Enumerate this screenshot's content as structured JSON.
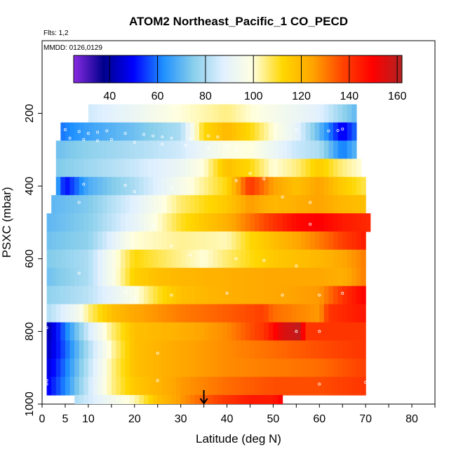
{
  "chart_data": {
    "type": "heatmap",
    "title": "ATOM2 Northeast_Pacific_1 CO_PECD",
    "annotations": {
      "flights": "Flts: 1,2",
      "dates": "MMDD: 0126,0129"
    },
    "xlabel": "Latitude (deg N)",
    "ylabel": "PSXC (mbar)",
    "xlim": [
      0,
      85
    ],
    "ylim": [
      1000,
      0
    ],
    "x_ticks": [
      0,
      5,
      10,
      20,
      30,
      40,
      50,
      60,
      70,
      80
    ],
    "y_ticks": [
      200,
      400,
      600,
      800,
      1000
    ],
    "colorbar": {
      "range": [
        25,
        162
      ],
      "ticks": [
        40,
        60,
        80,
        100,
        120,
        140,
        160
      ],
      "colors": [
        "#8a2be2",
        "#00008b",
        "#0000ff",
        "#1e90ff",
        "#87ceeb",
        "#e0f0ff",
        "#ffffe0",
        "#ffd700",
        "#ffa500",
        "#ff4500",
        "#ff0000",
        "#b22222"
      ]
    },
    "marker": {
      "latitude": 35
    },
    "bands": [
      {
        "p": [
          175,
          225
        ],
        "lat": [
          10,
          68
        ],
        "values": [
          [
            10,
            85
          ],
          [
            20,
            92
          ],
          [
            30,
            100
          ],
          [
            40,
            105
          ],
          [
            50,
            96
          ],
          [
            60,
            88
          ],
          [
            68,
            70
          ]
        ]
      },
      {
        "p": [
          225,
          275
        ],
        "lat": [
          4,
          68
        ],
        "values": [
          [
            4,
            60
          ],
          [
            10,
            66
          ],
          [
            20,
            72
          ],
          [
            30,
            80
          ],
          [
            35,
            112
          ],
          [
            40,
            120
          ],
          [
            45,
            112
          ],
          [
            50,
            100
          ],
          [
            55,
            90
          ],
          [
            60,
            70
          ],
          [
            65,
            48
          ],
          [
            68,
            60
          ]
        ]
      },
      {
        "p": [
          275,
          325
        ],
        "lat": [
          3,
          68
        ],
        "values": [
          [
            3,
            72
          ],
          [
            10,
            76
          ],
          [
            20,
            80
          ],
          [
            30,
            85
          ],
          [
            35,
            92
          ],
          [
            40,
            98
          ],
          [
            45,
            100
          ],
          [
            50,
            92
          ],
          [
            55,
            84
          ],
          [
            60,
            80
          ],
          [
            65,
            60
          ],
          [
            68,
            70
          ]
        ]
      },
      {
        "p": [
          325,
          375
        ],
        "lat": [
          3,
          69
        ],
        "values": [
          [
            3,
            74
          ],
          [
            10,
            78
          ],
          [
            20,
            84
          ],
          [
            30,
            92
          ],
          [
            35,
            100
          ],
          [
            40,
            118
          ],
          [
            45,
            112
          ],
          [
            50,
            100
          ],
          [
            55,
            105
          ],
          [
            60,
            115
          ],
          [
            65,
            105
          ],
          [
            69,
            100
          ]
        ]
      },
      {
        "p": [
          375,
          425
        ],
        "lat": [
          3,
          70
        ],
        "values": [
          [
            3,
            68
          ],
          [
            5,
            50
          ],
          [
            10,
            68
          ],
          [
            20,
            80
          ],
          [
            30,
            96
          ],
          [
            40,
            112
          ],
          [
            45,
            140
          ],
          [
            50,
            125
          ],
          [
            55,
            118
          ],
          [
            60,
            125
          ],
          [
            65,
            115
          ],
          [
            70,
            108
          ]
        ]
      },
      {
        "p": [
          425,
          475
        ],
        "lat": [
          2,
          70
        ],
        "values": [
          [
            2,
            70
          ],
          [
            10,
            74
          ],
          [
            20,
            88
          ],
          [
            30,
            106
          ],
          [
            40,
            116
          ],
          [
            45,
            126
          ],
          [
            50,
            120
          ],
          [
            55,
            122
          ],
          [
            60,
            125
          ],
          [
            65,
            120
          ],
          [
            70,
            118
          ]
        ]
      },
      {
        "p": [
          475,
          525
        ],
        "lat": [
          1,
          71
        ],
        "values": [
          [
            1,
            70
          ],
          [
            10,
            75
          ],
          [
            20,
            90
          ],
          [
            30,
            110
          ],
          [
            40,
            122
          ],
          [
            50,
            140
          ],
          [
            55,
            148
          ],
          [
            60,
            150
          ],
          [
            65,
            145
          ],
          [
            71,
            142
          ]
        ]
      },
      {
        "p": [
          525,
          575
        ],
        "lat": [
          1,
          70
        ],
        "values": [
          [
            1,
            72
          ],
          [
            10,
            76
          ],
          [
            15,
            88
          ],
          [
            20,
            100
          ],
          [
            30,
            104
          ],
          [
            40,
            102
          ],
          [
            45,
            112
          ],
          [
            50,
            118
          ],
          [
            55,
            124
          ],
          [
            60,
            130
          ],
          [
            65,
            138
          ],
          [
            70,
            145
          ]
        ]
      },
      {
        "p": [
          575,
          625
        ],
        "lat": [
          1,
          70
        ],
        "values": [
          [
            1,
            74
          ],
          [
            10,
            80
          ],
          [
            15,
            96
          ],
          [
            20,
            112
          ],
          [
            25,
            108
          ],
          [
            30,
            104
          ],
          [
            35,
            100
          ],
          [
            40,
            106
          ],
          [
            50,
            116
          ],
          [
            60,
            120
          ],
          [
            65,
            124
          ],
          [
            70,
            130
          ]
        ]
      },
      {
        "p": [
          625,
          675
        ],
        "lat": [
          1,
          70
        ],
        "values": [
          [
            1,
            72
          ],
          [
            10,
            80
          ],
          [
            15,
            96
          ],
          [
            20,
            114
          ],
          [
            25,
            118
          ],
          [
            30,
            120
          ],
          [
            40,
            122
          ],
          [
            50,
            124
          ],
          [
            60,
            124
          ],
          [
            65,
            122
          ],
          [
            70,
            130
          ]
        ]
      },
      {
        "p": [
          675,
          725
        ],
        "lat": [
          1,
          70
        ],
        "values": [
          [
            1,
            76
          ],
          [
            10,
            82
          ],
          [
            15,
            90
          ],
          [
            20,
            98
          ],
          [
            25,
            110
          ],
          [
            30,
            118
          ],
          [
            40,
            122
          ],
          [
            50,
            124
          ],
          [
            60,
            126
          ],
          [
            65,
            140
          ],
          [
            70,
            150
          ]
        ]
      },
      {
        "p": [
          725,
          775
        ],
        "lat": [
          1,
          70
        ],
        "values": [
          [
            1,
            80
          ],
          [
            8,
            95
          ],
          [
            10,
            105
          ],
          [
            15,
            118
          ],
          [
            20,
            124
          ],
          [
            30,
            130
          ],
          [
            40,
            134
          ],
          [
            48,
            138
          ],
          [
            50,
            132
          ],
          [
            60,
            126
          ],
          [
            62,
            140
          ],
          [
            70,
            146
          ]
        ]
      },
      {
        "p": [
          775,
          825
        ],
        "lat": [
          1,
          70
        ],
        "values": [
          [
            1,
            40
          ],
          [
            5,
            60
          ],
          [
            10,
            85
          ],
          [
            15,
            105
          ],
          [
            20,
            118
          ],
          [
            30,
            122
          ],
          [
            40,
            128
          ],
          [
            48,
            140
          ],
          [
            52,
            155
          ],
          [
            56,
            160
          ],
          [
            57,
            140
          ],
          [
            70,
            140
          ]
        ]
      },
      {
        "p": [
          825,
          875
        ],
        "lat": [
          1,
          70
        ],
        "values": [
          [
            1,
            42
          ],
          [
            5,
            58
          ],
          [
            10,
            80
          ],
          [
            15,
            102
          ],
          [
            20,
            118
          ],
          [
            30,
            124
          ],
          [
            40,
            128
          ],
          [
            50,
            132
          ],
          [
            60,
            136
          ],
          [
            70,
            140
          ]
        ]
      },
      {
        "p": [
          875,
          925
        ],
        "lat": [
          1,
          70
        ],
        "values": [
          [
            1,
            45
          ],
          [
            5,
            60
          ],
          [
            10,
            82
          ],
          [
            15,
            104
          ],
          [
            20,
            118
          ],
          [
            30,
            124
          ],
          [
            40,
            128
          ],
          [
            50,
            130
          ],
          [
            60,
            132
          ],
          [
            70,
            138
          ]
        ]
      },
      {
        "p": [
          925,
          975
        ],
        "lat": [
          1,
          70
        ],
        "values": [
          [
            1,
            48
          ],
          [
            5,
            62
          ],
          [
            10,
            84
          ],
          [
            15,
            104
          ],
          [
            20,
            116
          ],
          [
            30,
            126
          ],
          [
            40,
            132
          ],
          [
            50,
            136
          ],
          [
            60,
            136
          ],
          [
            70,
            140
          ]
        ]
      },
      {
        "p": [
          975,
          1000
        ],
        "lat": [
          7,
          52
        ],
        "values": [
          [
            7,
            80
          ],
          [
            10,
            85
          ],
          [
            15,
            94
          ],
          [
            20,
            102
          ],
          [
            25,
            118
          ],
          [
            30,
            126
          ],
          [
            35,
            134
          ],
          [
            40,
            140
          ],
          [
            45,
            145
          ],
          [
            50,
            145
          ],
          [
            52,
            150
          ]
        ]
      }
    ],
    "samples": [
      [
        5,
        245
      ],
      [
        8,
        250
      ],
      [
        10,
        255
      ],
      [
        12,
        252
      ],
      [
        14,
        248
      ],
      [
        18,
        255
      ],
      [
        22,
        258
      ],
      [
        24,
        262
      ],
      [
        26,
        265
      ],
      [
        28,
        268
      ],
      [
        32,
        270
      ],
      [
        36,
        262
      ],
      [
        38,
        265
      ],
      [
        55,
        245
      ],
      [
        62,
        248
      ],
      [
        64,
        247
      ],
      [
        65,
        243
      ],
      [
        3,
        268
      ],
      [
        6,
        268
      ],
      [
        9,
        272
      ],
      [
        12,
        275
      ],
      [
        15,
        272
      ],
      [
        20,
        280
      ],
      [
        26,
        285
      ],
      [
        31,
        288
      ],
      [
        36,
        295
      ],
      [
        40,
        290
      ],
      [
        42,
        300
      ],
      [
        9,
        395
      ],
      [
        18,
        398
      ],
      [
        20,
        415
      ],
      [
        28,
        405
      ],
      [
        42,
        385
      ],
      [
        45,
        365
      ],
      [
        48,
        380
      ],
      [
        52,
        430
      ],
      [
        58,
        445
      ],
      [
        58,
        505
      ],
      [
        8,
        445
      ],
      [
        24,
        510
      ],
      [
        28,
        565
      ],
      [
        32,
        590
      ],
      [
        42,
        600
      ],
      [
        48,
        605
      ],
      [
        55,
        620
      ],
      [
        8,
        640
      ],
      [
        18,
        690
      ],
      [
        20,
        710
      ],
      [
        28,
        700
      ],
      [
        40,
        695
      ],
      [
        52,
        700
      ],
      [
        60,
        700
      ],
      [
        65,
        695
      ],
      [
        1,
        790
      ],
      [
        55,
        800
      ],
      [
        60,
        800
      ],
      [
        25,
        860
      ],
      [
        1,
        935
      ],
      [
        1,
        945
      ],
      [
        25,
        935
      ],
      [
        60,
        945
      ],
      [
        70,
        940
      ]
    ]
  }
}
